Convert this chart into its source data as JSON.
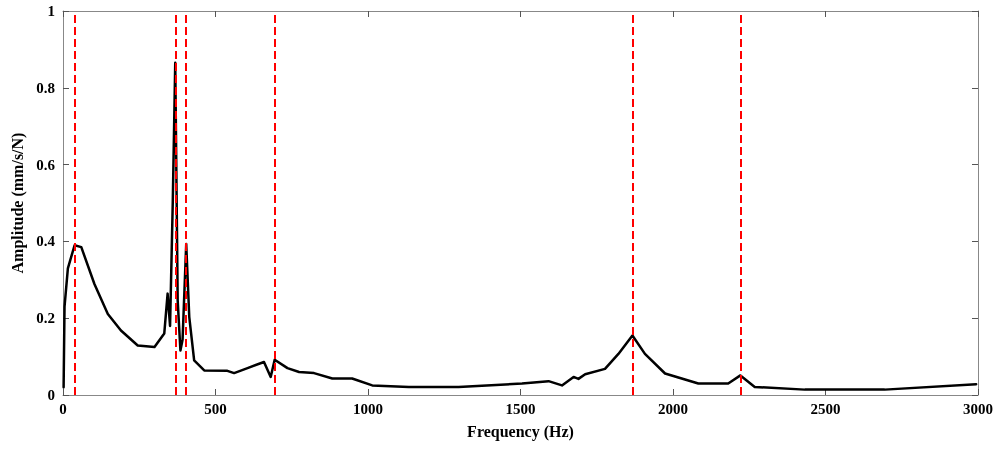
{
  "chart_data": {
    "type": "line",
    "xlabel": "Frequency (Hz)",
    "ylabel": "Amplitude (mm/s/N)",
    "xlim": [
      0,
      3000
    ],
    "xticks": [
      0,
      500,
      1000,
      1500,
      2000,
      2500,
      3000
    ],
    "ylim": [
      0,
      1
    ],
    "yticks": [
      0,
      0.2,
      0.4,
      0.6,
      0.8,
      1
    ],
    "grid": false,
    "marker": "none",
    "line_style": "solid",
    "series": [
      {
        "color": "#000000",
        "x": [
          2,
          5,
          16,
          38,
          60,
          103,
          147,
          190,
          245,
          300,
          332,
          343,
          351,
          360,
          368,
          376,
          385,
          392,
          404,
          414,
          430,
          463,
          539,
          561,
          605,
          659,
          681,
          694,
          736,
          774,
          823,
          883,
          948,
          1014,
          1134,
          1232,
          1297,
          1505,
          1592,
          1636,
          1674,
          1690,
          1712,
          1777,
          1821,
          1867,
          1908,
          1974,
          2083,
          2181,
          2221,
          2268,
          2432,
          2694,
          2994
        ],
        "values": [
          0.02,
          0.23,
          0.33,
          0.39,
          0.385,
          0.289,
          0.211,
          0.168,
          0.129,
          0.125,
          0.16,
          0.264,
          0.18,
          0.506,
          0.865,
          0.246,
          0.116,
          0.144,
          0.393,
          0.203,
          0.09,
          0.064,
          0.063,
          0.057,
          0.07,
          0.086,
          0.047,
          0.092,
          0.07,
          0.06,
          0.057,
          0.043,
          0.043,
          0.025,
          0.021,
          0.021,
          0.021,
          0.03,
          0.036,
          0.025,
          0.047,
          0.042,
          0.054,
          0.068,
          0.107,
          0.155,
          0.107,
          0.056,
          0.03,
          0.03,
          0.051,
          0.021,
          0.014,
          0.014,
          0.028
        ]
      }
    ],
    "ref_lines": [
      {
        "axis": "x",
        "value": 39,
        "color": "#ff0000",
        "line_style": "dashed"
      },
      {
        "axis": "x",
        "value": 369,
        "color": "#ff0000",
        "line_style": "dashed"
      },
      {
        "axis": "x",
        "value": 404,
        "color": "#ff0000",
        "line_style": "dashed"
      },
      {
        "axis": "x",
        "value": 694,
        "color": "#ff0000",
        "line_style": "dashed"
      },
      {
        "axis": "x",
        "value": 1867,
        "color": "#ff0000",
        "line_style": "dashed"
      },
      {
        "axis": "x",
        "value": 2221,
        "color": "#ff0000",
        "line_style": "dashed"
      }
    ]
  }
}
